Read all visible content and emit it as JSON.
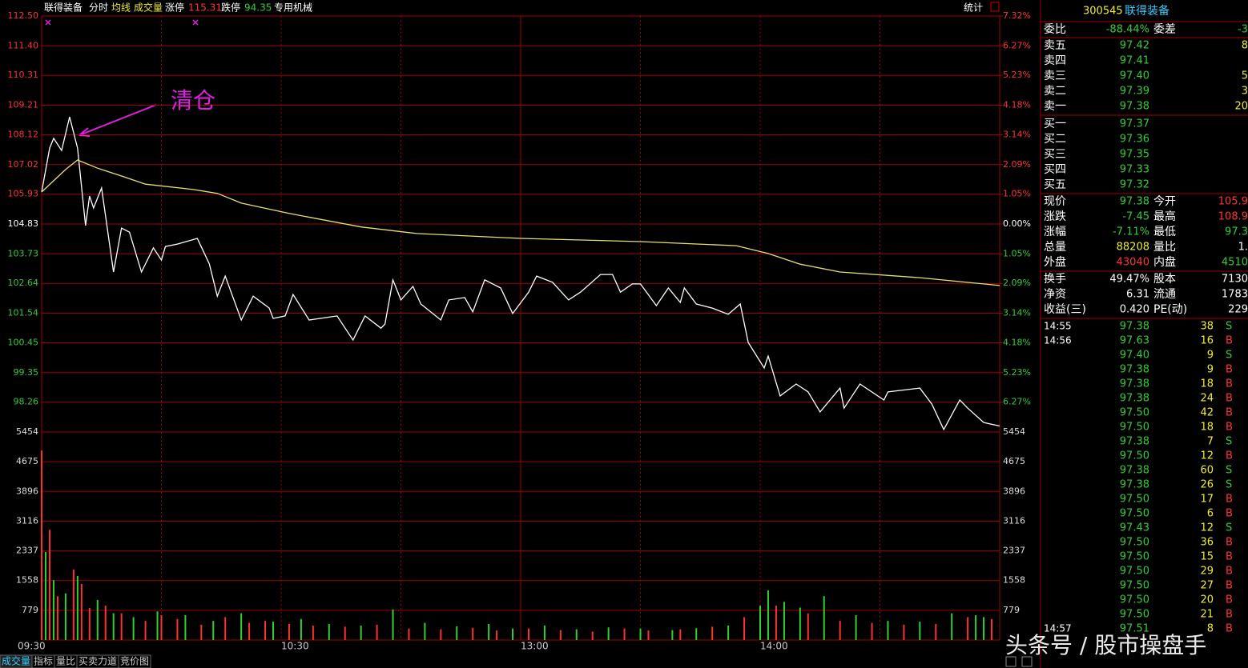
{
  "header": {
    "name": "联得装备",
    "items": [
      "分时",
      "均线",
      "成交量"
    ],
    "limit_up_label": "涨停",
    "limit_up": "115.31",
    "limit_down_label": "跌停",
    "limit_down": "94.35",
    "industry": "专用机械",
    "stats": "统计"
  },
  "chart_data": {
    "type": "line",
    "annotation": "清仓",
    "xlim": [
      0,
      240
    ],
    "xticks": [
      {
        "value": 0,
        "label": "09:30"
      },
      {
        "value": 60,
        "label": "10:30"
      },
      {
        "value": 120,
        "label": "13:00"
      },
      {
        "value": 180,
        "label": "14:00"
      }
    ],
    "ylim": [
      97.16,
      112.5
    ],
    "yticks": [
      {
        "value": 112.5,
        "label": "112.50"
      },
      {
        "value": 111.4,
        "label": "111.40"
      },
      110.31,
      109.21,
      108.12,
      107.02,
      105.93,
      104.83,
      103.73,
      102.64,
      101.54,
      100.45,
      99.35,
      98.26
    ],
    "y2lim": [
      -7.32,
      7.32
    ],
    "y2ticks": [
      {
        "value": 7.32,
        "label": "7.32%"
      },
      {
        "value": 6.27,
        "label": "6.27%"
      },
      {
        "value": 5.23,
        "label": "5.23%"
      },
      {
        "value": 4.18,
        "label": "4.18%"
      },
      {
        "value": 3.14,
        "label": "3.14%"
      },
      {
        "value": 2.09,
        "label": "2.09%"
      },
      {
        "value": 1.05,
        "label": "1.05%"
      },
      {
        "value": 0,
        "label": "0.00%"
      },
      {
        "value": -1.05,
        "label": "1.05%"
      },
      {
        "value": -2.09,
        "label": "2.09%"
      },
      {
        "value": -3.14,
        "label": "3.14%"
      },
      {
        "value": -4.18,
        "label": "4.18%"
      },
      {
        "value": -5.23,
        "label": "5.23%"
      },
      {
        "value": -6.27,
        "label": "6.27%"
      }
    ],
    "series": [
      {
        "color": "#ffffff",
        "x": [
          0,
          2,
          3,
          5,
          7,
          9,
          11,
          12,
          13,
          15,
          18,
          20,
          22,
          25,
          28,
          30,
          31,
          34,
          39,
          42,
          44,
          46,
          50,
          53,
          57,
          58,
          61,
          63,
          67,
          74,
          78,
          81,
          85,
          86,
          88,
          90,
          93,
          95,
          100,
          102,
          106,
          108,
          111,
          115,
          118,
          122,
          124,
          128,
          132,
          135,
          140,
          143,
          145,
          148,
          150,
          154,
          157,
          160,
          161,
          164,
          168,
          172,
          175,
          177,
          181,
          182,
          185,
          189,
          192,
          195,
          200,
          201,
          205,
          211,
          212,
          220,
          223,
          226,
          230,
          232,
          236,
          240
        ],
        "values": [
          106.01,
          107.63,
          107.99,
          107.54,
          108.78,
          107.63,
          104.77,
          105.86,
          105.42,
          106.16,
          103.06,
          104.68,
          104.53,
          103.06,
          103.95,
          103.5,
          104,
          104.09,
          104.3,
          103.36,
          102.17,
          102.91,
          101.29,
          102.17,
          101.73,
          101.35,
          101.44,
          102.23,
          101.29,
          101.44,
          100.55,
          101.44,
          100.99,
          101.14,
          102.77,
          102.03,
          102.53,
          101.88,
          101.29,
          102.03,
          102.12,
          101.59,
          102.77,
          102.47,
          101.53,
          102.32,
          102.91,
          102.68,
          102.03,
          102.32,
          102.97,
          102.97,
          102.32,
          102.62,
          102.62,
          101.82,
          102.47,
          101.94,
          102.47,
          101.88,
          101.73,
          101.5,
          101.88,
          100.46,
          99.52,
          99.96,
          98.49,
          98.93,
          98.64,
          97.9,
          98.78,
          98.04,
          98.93,
          98.34,
          98.64,
          98.78,
          98.19,
          97.25,
          98.34,
          98.04,
          97.51,
          97.38
        ]
      },
      {
        "color": "#e8e070",
        "x": [
          0,
          6,
          9,
          14,
          20,
          26,
          38,
          44,
          50,
          62,
          80,
          94,
          120,
          150,
          174,
          182,
          190,
          200,
          220,
          240
        ],
        "values": [
          106.01,
          106.84,
          107.19,
          106.89,
          106.6,
          106.3,
          106.1,
          105.96,
          105.6,
          105.22,
          104.72,
          104.48,
          104.3,
          104.18,
          104.03,
          103.74,
          103.35,
          103.06,
          102.85,
          102.56
        ]
      }
    ],
    "volume": {
      "ylim": [
        0,
        5454
      ],
      "yticks": [
        779,
        1558,
        2337,
        3116,
        3896,
        4675,
        5454
      ],
      "series": [
        {
          "color": "#ff3030",
          "x": [
            0,
            2,
            4,
            8,
            10,
            12,
            16,
            20,
            26,
            30,
            34,
            40,
            46,
            52,
            56,
            62,
            68,
            76,
            84,
            92,
            100,
            108,
            114,
            122,
            130,
            138,
            146,
            152,
            160,
            168,
            176,
            184,
            192,
            200,
            208,
            216,
            224,
            232,
            238
          ],
          "values": [
            4970,
            2890,
            1150,
            1850,
            1470,
            840,
            900,
            700,
            500,
            650,
            550,
            400,
            600,
            450,
            500,
            420,
            380,
            350,
            400,
            300,
            280,
            320,
            250,
            300,
            260,
            220,
            300,
            250,
            280,
            350,
            600,
            900,
            700,
            500,
            450,
            400,
            420,
            600,
            550
          ]
        },
        {
          "color": "#30d030",
          "x": [
            1,
            3,
            6,
            9,
            14,
            18,
            23,
            29,
            36,
            43,
            50,
            58,
            65,
            72,
            80,
            88,
            96,
            104,
            112,
            118,
            126,
            134,
            142,
            150,
            158,
            164,
            172,
            180,
            182,
            186,
            190,
            196,
            204,
            212,
            220,
            228,
            234,
            236
          ],
          "values": [
            2310,
            1570,
            1220,
            1680,
            1050,
            700,
            600,
            750,
            650,
            500,
            700,
            480,
            550,
            420,
            380,
            800,
            450,
            360,
            420,
            300,
            380,
            280,
            330,
            300,
            260,
            310,
            380,
            900,
            1300,
            1000,
            850,
            1150,
            650,
            500,
            480,
            700,
            650,
            600
          ]
        }
      ]
    }
  },
  "quote": {
    "code": "300545",
    "name": "联得装备",
    "ratio": {
      "label": "委比",
      "value": "-88.44%",
      "label2": "委差",
      "value2": "-3"
    },
    "asks": [
      {
        "label": "卖五",
        "price": "97.42",
        "volume": "8"
      },
      {
        "label": "卖四",
        "price": "97.41"
      },
      {
        "label": "卖三",
        "price": "97.40",
        "volume": "5"
      },
      {
        "label": "卖二",
        "price": "97.39",
        "volume": "3"
      },
      {
        "label": "卖一",
        "price": "97.38",
        "volume": "20"
      }
    ],
    "bids": [
      {
        "label": "买一",
        "price": "97.37"
      },
      {
        "label": "买二",
        "price": "97.36"
      },
      {
        "label": "买三",
        "price": "97.35"
      },
      {
        "label": "买四",
        "price": "97.33"
      },
      {
        "label": "买五",
        "price": "97.32"
      }
    ],
    "stats": [
      {
        "label": "现价",
        "value": "97.38",
        "label2": "今开",
        "value2": "105.9"
      },
      {
        "label": "涨跌",
        "value": "-7.45",
        "label2": "最高",
        "value2": "108.9"
      },
      {
        "label": "涨幅",
        "value": "-7.11%",
        "label2": "最低",
        "value2": "97.3"
      },
      {
        "label": "总量",
        "value": "88208",
        "label2": "量比",
        "value2": "1."
      },
      {
        "label": "外盘",
        "value": "43040",
        "label2": "内盘",
        "value2": "4510"
      }
    ],
    "info": [
      {
        "label": "换手",
        "value": "49.47%",
        "label2": "股本",
        "value2": "7130"
      },
      {
        "label": "净资",
        "value": "6.31",
        "label2": "流通",
        "value2": "1783"
      },
      {
        "label": "收益(三)",
        "value": "0.420",
        "label2": "PE(动)",
        "value2": "229"
      }
    ]
  },
  "trades": [
    {
      "time": "14:55",
      "price": "97.38",
      "volume": "38",
      "side": "S"
    },
    {
      "time": "14:56",
      "price": "97.63",
      "volume": "16",
      "side": "B"
    },
    {
      "price": "97.40",
      "volume": "9",
      "side": "S"
    },
    {
      "price": "97.38",
      "volume": "9",
      "side": "B"
    },
    {
      "price": "97.38",
      "volume": "18",
      "side": "B"
    },
    {
      "price": "97.38",
      "volume": "24",
      "side": "B"
    },
    {
      "price": "97.50",
      "volume": "42",
      "side": "B"
    },
    {
      "price": "97.50",
      "volume": "18",
      "side": "B"
    },
    {
      "price": "97.38",
      "volume": "7",
      "side": "S"
    },
    {
      "price": "97.50",
      "volume": "12",
      "side": "B"
    },
    {
      "price": "97.38",
      "volume": "60",
      "side": "S"
    },
    {
      "price": "97.38",
      "volume": "26",
      "side": "S"
    },
    {
      "price": "97.50",
      "volume": "17",
      "side": "B"
    },
    {
      "price": "97.50",
      "volume": "6",
      "side": "B"
    },
    {
      "price": "97.43",
      "volume": "12",
      "side": "S"
    },
    {
      "price": "97.50",
      "volume": "36",
      "side": "B"
    },
    {
      "price": "97.50",
      "volume": "15",
      "side": "B"
    },
    {
      "price": "97.50",
      "volume": "29",
      "side": "B"
    },
    {
      "price": "97.50",
      "volume": "27",
      "side": "B"
    },
    {
      "price": "97.50",
      "volume": "20",
      "side": "B"
    },
    {
      "price": "97.50",
      "volume": "21",
      "side": "B"
    },
    {
      "time": "14:57",
      "price": "97.51",
      "volume": "8",
      "side": "B"
    }
  ],
  "tabs": [
    "成交量",
    "指标",
    "量比",
    "买卖力道",
    "竞价图"
  ],
  "watermark": "头条号 / 股市操盘手"
}
